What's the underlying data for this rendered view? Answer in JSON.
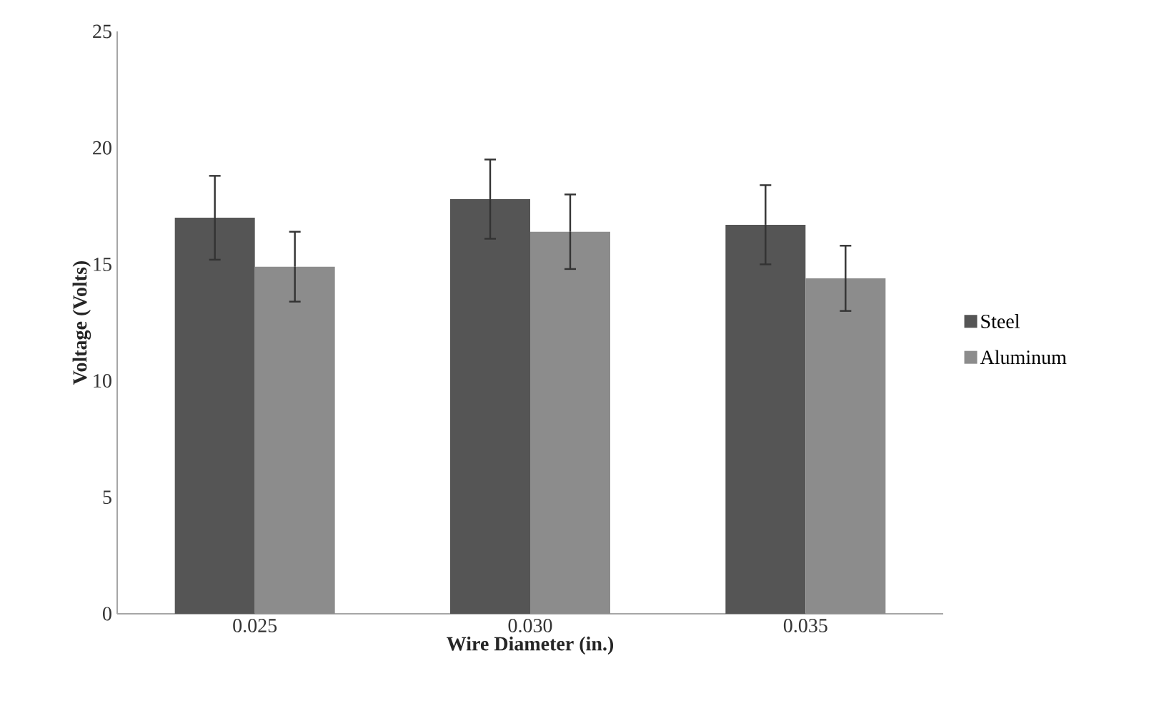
{
  "chart_data": {
    "type": "bar",
    "xlabel": "Wire Diameter (in.)",
    "ylabel": "Voltage (Volts)",
    "categories": [
      "0.025",
      "0.030",
      "0.035"
    ],
    "series": [
      {
        "name": "Steel",
        "color": "#555555",
        "values": [
          17.0,
          17.8,
          16.7
        ],
        "errors": [
          1.8,
          1.7,
          1.7
        ]
      },
      {
        "name": "Aluminum",
        "color": "#8c8c8c",
        "values": [
          14.9,
          16.4,
          14.4
        ],
        "errors": [
          1.5,
          1.6,
          1.4
        ]
      }
    ],
    "ylim": [
      0,
      25
    ],
    "yticks": [
      0,
      5,
      10,
      15,
      20,
      25
    ],
    "legend": "right"
  }
}
